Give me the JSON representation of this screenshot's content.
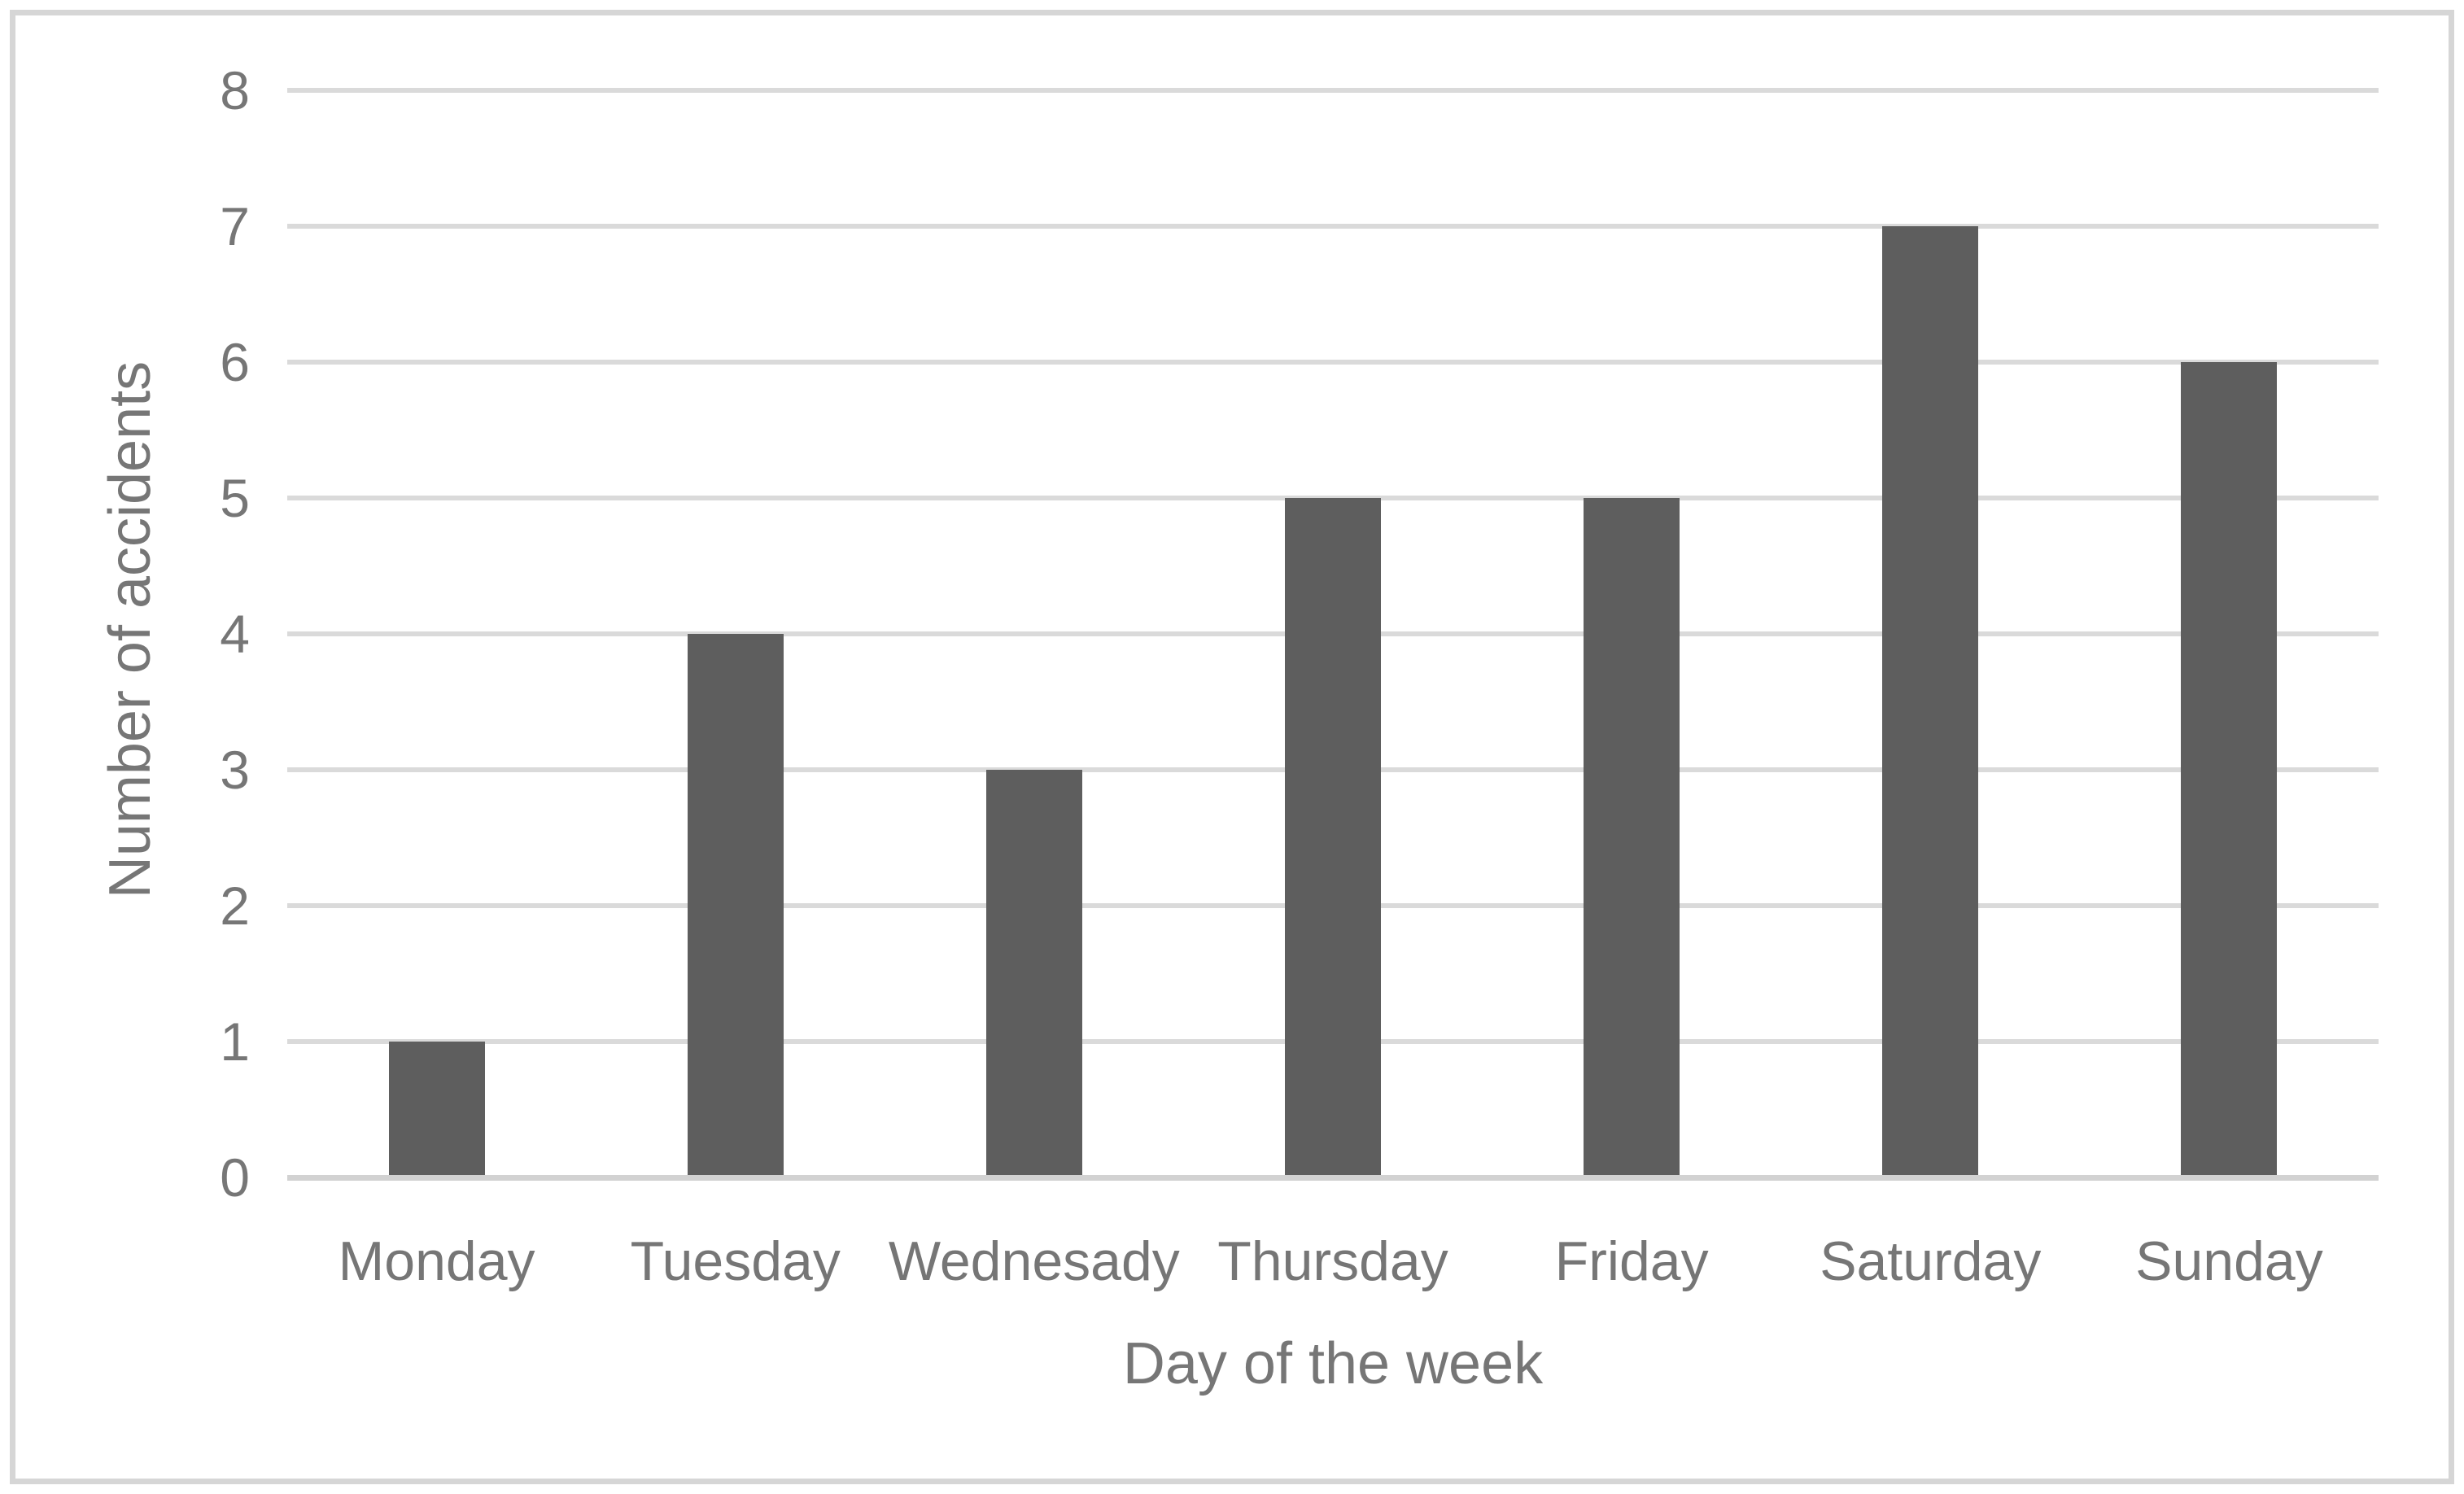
{
  "chart_data": {
    "type": "bar",
    "title": "",
    "categories": [
      "Monday",
      "Tuesday",
      "Wednesady",
      "Thursday",
      "Friday",
      "Saturday",
      "Sunday"
    ],
    "values": [
      1,
      4,
      3,
      5,
      5,
      7,
      6
    ],
    "xlabel": "Day of the week",
    "ylabel": "Number of accidents",
    "ylim": [
      0,
      8
    ],
    "ytick_step": 1,
    "ytick_labels": [
      "0",
      "1",
      "2",
      "3",
      "4",
      "5",
      "6",
      "7",
      "8"
    ],
    "grid": "horizontal",
    "legend": "none",
    "bar_color": "#5e5e5e",
    "gridline_color": "#dadada",
    "axis_line_color": "#d2d2d2",
    "text_color": "#767676",
    "frame_border_color": "#d6d6d6",
    "background_color": "#ffffff"
  }
}
